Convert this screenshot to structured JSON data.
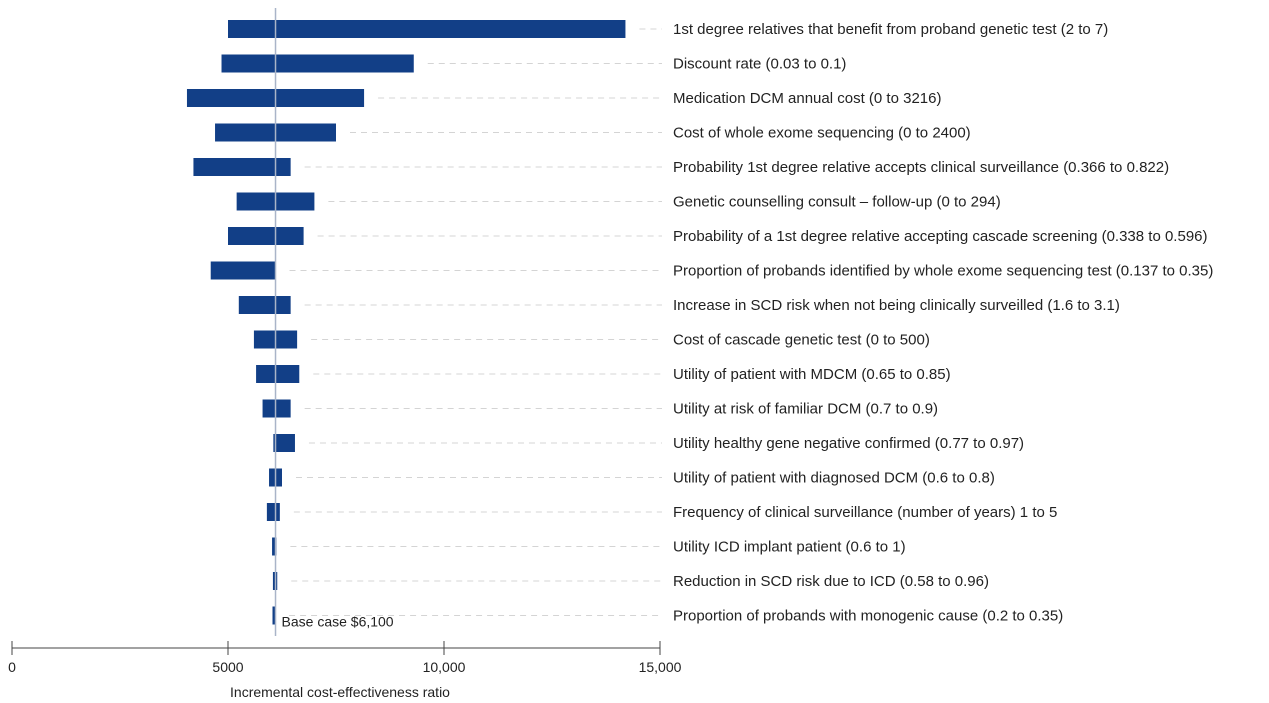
{
  "chart_data": {
    "type": "bar",
    "orientation": "horizontal",
    "subtype": "tornado",
    "xlabel": "Incremental cost-effectiveness ratio",
    "xlim": [
      0,
      15000
    ],
    "xticks": [
      0,
      5000,
      10000,
      15000
    ],
    "xtick_labels": [
      "0",
      "5000",
      "10,000",
      "15,000"
    ],
    "base_case": 6100,
    "base_case_label": "Base case $6,100",
    "bar_color": "#123f87",
    "parameters": [
      {
        "label": "1st degree relatives that benefit from proband genetic test (2 to 7)",
        "low": 5000,
        "high": 14200
      },
      {
        "label": "Discount rate (0.03 to 0.1)",
        "low": 4850,
        "high": 9300
      },
      {
        "label": "Medication DCM annual cost (0 to 3216)",
        "low": 4050,
        "high": 8150
      },
      {
        "label": "Cost of whole exome sequencing (0 to 2400)",
        "low": 4700,
        "high": 7500
      },
      {
        "label": "Probability 1st degree relative accepts clinical surveillance (0.366 to 0.822)",
        "low": 4200,
        "high": 6450
      },
      {
        "label": "Genetic counselling consult – follow-up (0 to 294)",
        "low": 5200,
        "high": 7000
      },
      {
        "label": "Probability of a 1st degree relative accepting cascade screening (0.338 to 0.596)",
        "low": 5000,
        "high": 6750
      },
      {
        "label": "Proportion of probands identified by whole exome sequencing test (0.137 to 0.35)",
        "low": 4600,
        "high": 6100
      },
      {
        "label": "Increase in SCD risk when not being clinically surveilled (1.6 to 3.1)",
        "low": 5250,
        "high": 6450
      },
      {
        "label": "Cost of cascade genetic test (0 to 500)",
        "low": 5600,
        "high": 6600
      },
      {
        "label": "Utility of patient with MDCM (0.65 to 0.85)",
        "low": 5650,
        "high": 6650
      },
      {
        "label": "Utility at risk of familiar DCM (0.7 to 0.9)",
        "low": 5800,
        "high": 6450
      },
      {
        "label": "Utility healthy gene negative confirmed (0.77 to 0.97)",
        "low": 6050,
        "high": 6550
      },
      {
        "label": "Utility of patient with diagnosed DCM (0.6 to 0.8)",
        "low": 5950,
        "high": 6250
      },
      {
        "label": "Frequency of clinical surveillance (number of years) 1 to 5",
        "low": 5900,
        "high": 6200
      },
      {
        "label": "Utility ICD implant patient (0.6 to 1)",
        "low": 6020,
        "high": 6120
      },
      {
        "label": "Reduction in SCD risk due to ICD (0.58 to 0.96)",
        "low": 6040,
        "high": 6140
      },
      {
        "label": "Proportion of probands with monogenic cause (0.2 to 0.35)",
        "low": 6030,
        "high": 6090
      }
    ]
  }
}
